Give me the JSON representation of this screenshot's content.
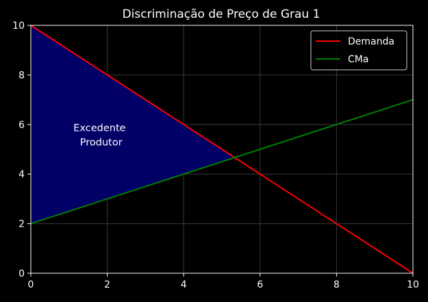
{
  "chart_data": {
    "type": "line",
    "title": "Discriminação de Preço de Grau 1",
    "xlabel": "",
    "ylabel": "",
    "xlim": [
      0,
      10
    ],
    "ylim": [
      0,
      10
    ],
    "x_ticks": [
      0,
      2,
      4,
      6,
      8,
      10
    ],
    "y_ticks": [
      0,
      2,
      4,
      6,
      8,
      10
    ],
    "grid": true,
    "legend_position": "top-right",
    "series": [
      {
        "name": "Demanda",
        "color": "#ff0000",
        "x": [
          0,
          10
        ],
        "y": [
          10,
          0
        ]
      },
      {
        "name": "CMa",
        "color": "#008000",
        "x": [
          0,
          10
        ],
        "y": [
          2,
          7
        ]
      }
    ],
    "filled_region": {
      "color": "#000066",
      "vertices": [
        [
          0,
          10
        ],
        [
          5.333,
          4.667
        ],
        [
          0,
          2
        ]
      ]
    },
    "annotation": {
      "lines": [
        "Excedente",
        " Produtor"
      ],
      "x": 1.8,
      "y": 5.4
    }
  }
}
